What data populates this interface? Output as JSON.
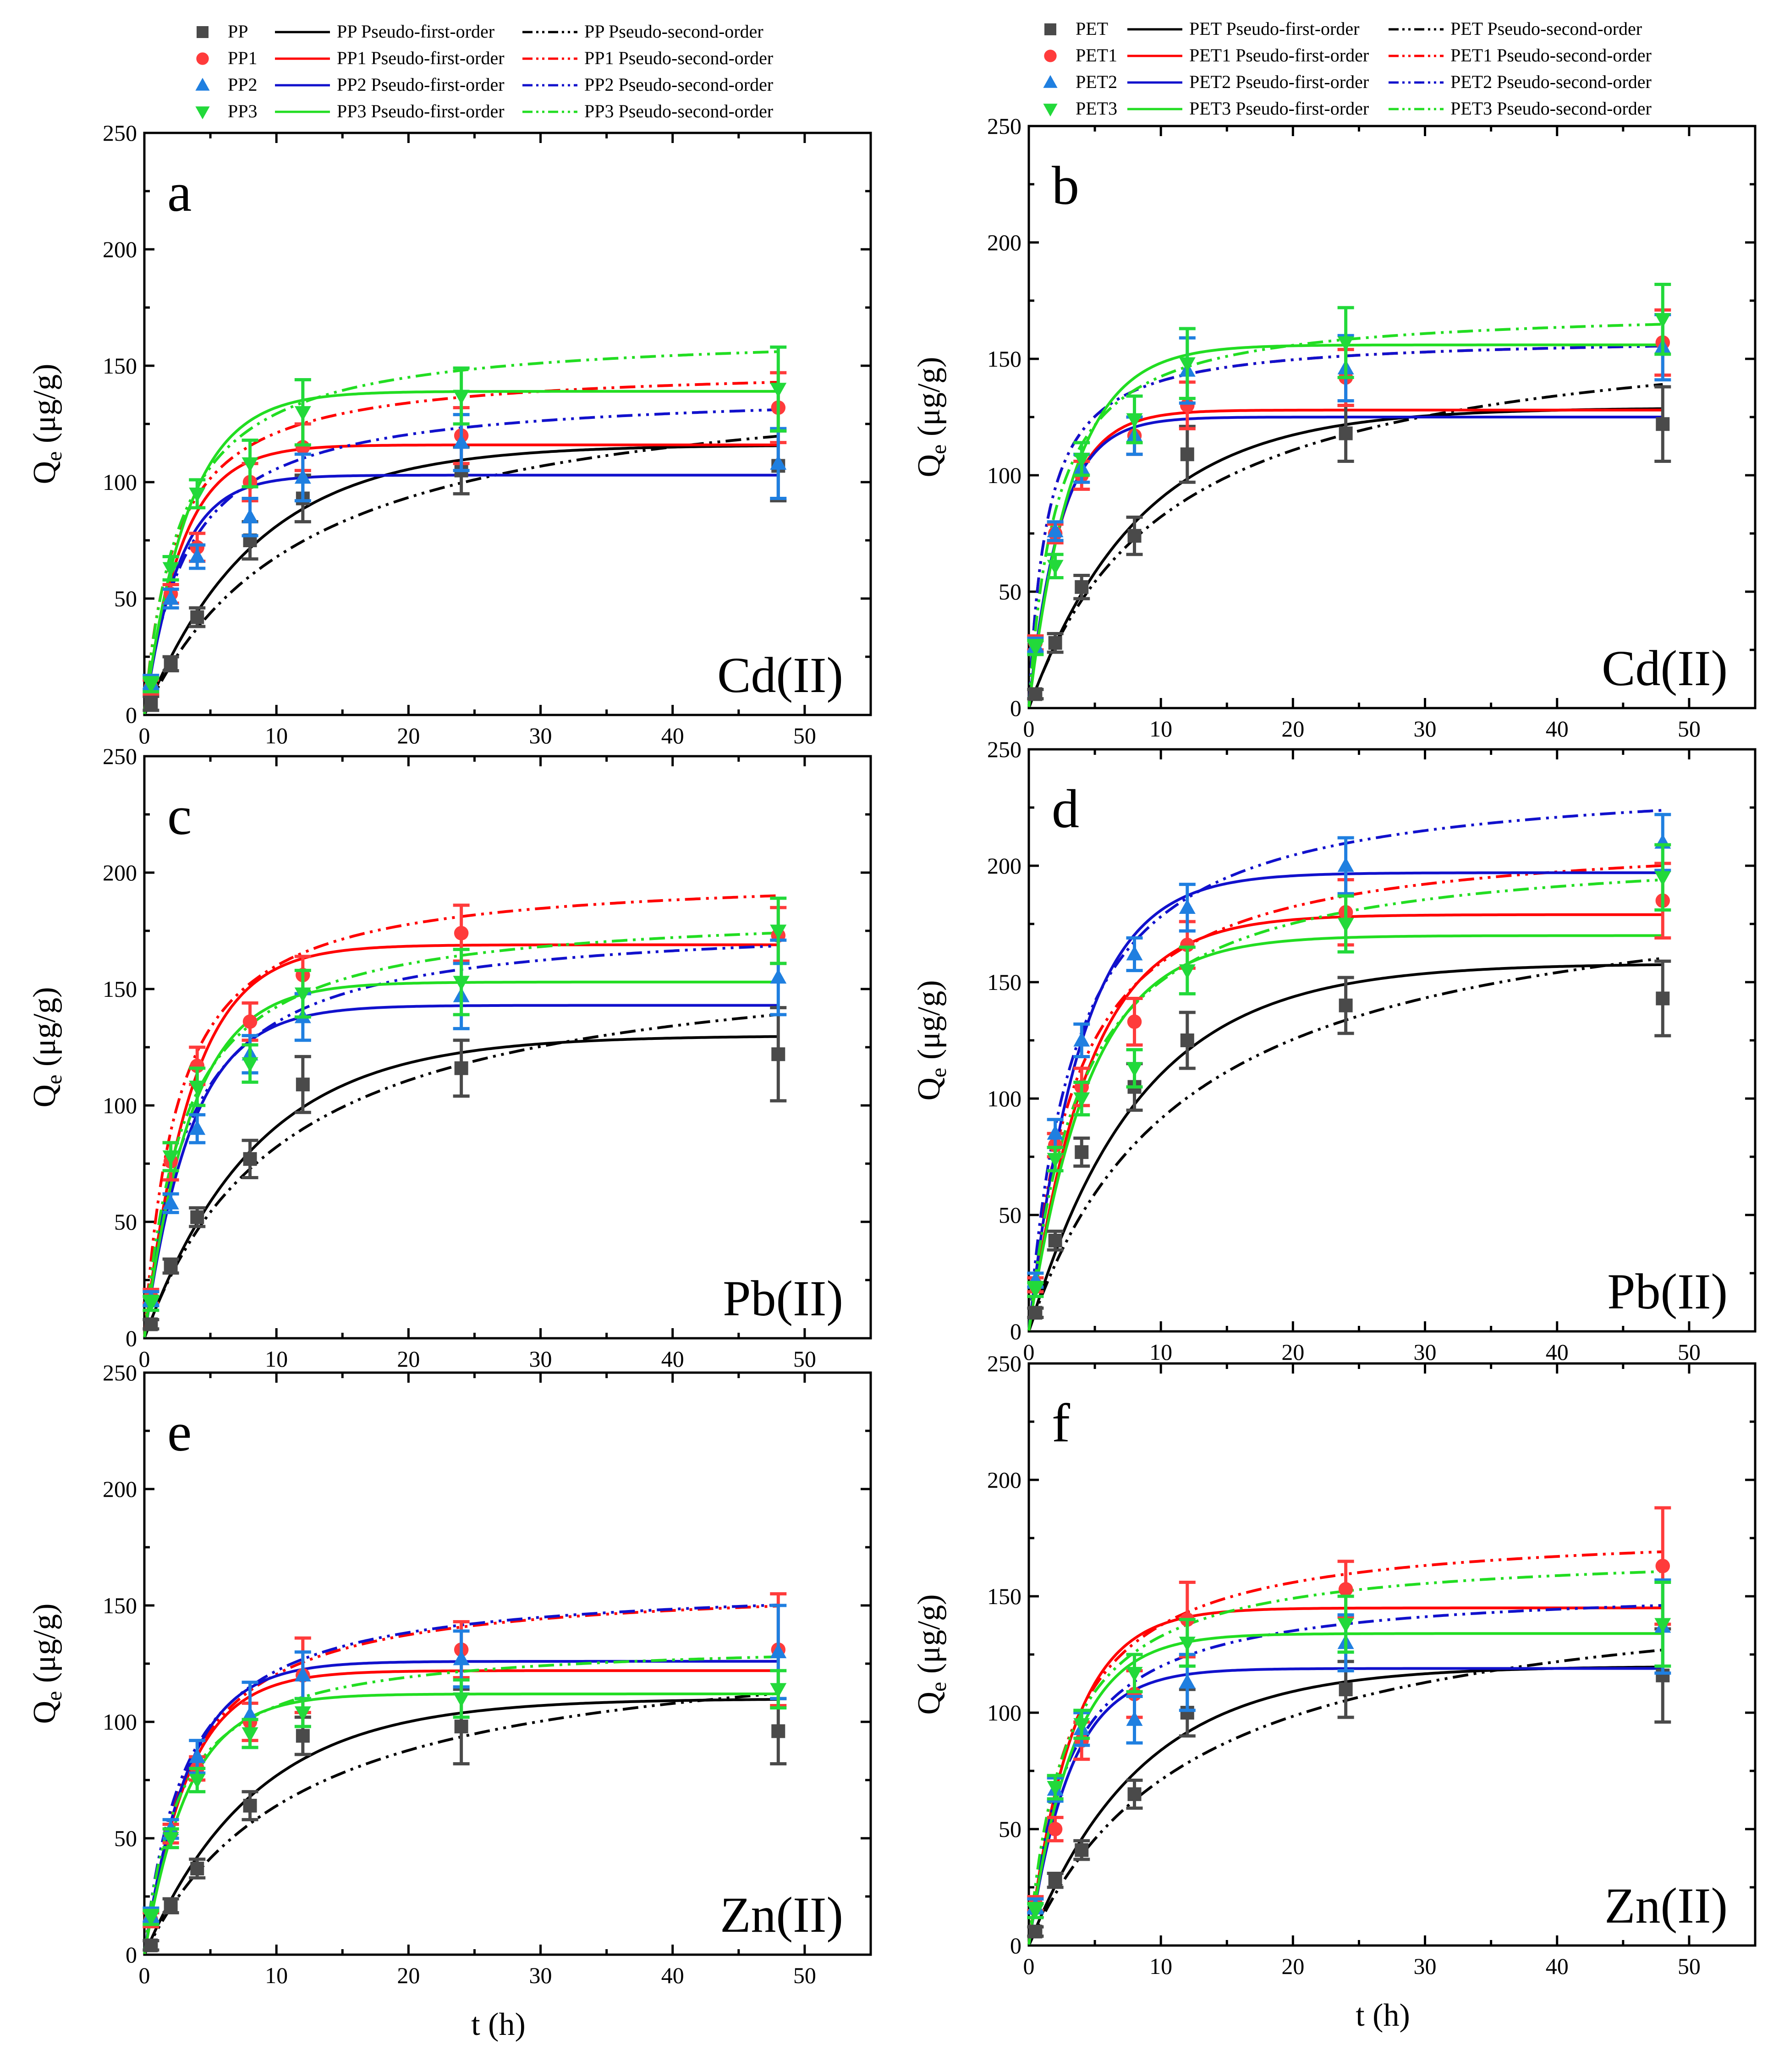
{
  "legend_left": {
    "rows": [
      {
        "marker_label": "PP",
        "first_label": "PP   Pseudo-first-order",
        "second_label": "PP   Pseudo-second-order"
      },
      {
        "marker_label": "PP1",
        "first_label": "PP1 Pseudo-first-order",
        "second_label": "PP1 Pseudo-second-order"
      },
      {
        "marker_label": "PP2",
        "first_label": "PP2 Pseudo-first-order",
        "second_label": "PP2 Pseudo-second-order"
      },
      {
        "marker_label": "PP3",
        "first_label": "PP3 Pseudo-first-order",
        "second_label": "PP3 Pseudo-second-order"
      }
    ]
  },
  "legend_right": {
    "rows": [
      {
        "marker_label": "PET",
        "first_label": "PET   Pseudo-first-order",
        "second_label": "PET   Pseudo-second-order"
      },
      {
        "marker_label": "PET1",
        "first_label": "PET1 Pseudo-first-order",
        "second_label": "PET1 Pseudo-second-order"
      },
      {
        "marker_label": "PET2",
        "first_label": "PET2 Pseudo-first-order",
        "second_label": "PET2 Pseudo-second-order"
      },
      {
        "marker_label": "PET3",
        "first_label": "PET3 Pseudo-first-order",
        "second_label": "PET3 Pseudo-second-order"
      }
    ]
  },
  "series_style": {
    "colors": [
      "#4a4a4a",
      "#ff3b3b",
      "#1f7fe0",
      "#22d93a"
    ],
    "fit_colors": [
      "#000000",
      "#ff0000",
      "#1111cc",
      "#22dd22"
    ],
    "markers": [
      "square",
      "circle",
      "triangle-up",
      "triangle-down"
    ]
  },
  "chart_data": [
    {
      "id": "a",
      "type": "scatter",
      "letter": "a",
      "metal": "Cd(II)",
      "xlabel": "t (h)",
      "ylabel": "Q_e (μg/g)",
      "xlim": [
        0,
        55
      ],
      "ylim": [
        0,
        250
      ],
      "xticks": [
        "0",
        "10",
        "20",
        "30",
        "40",
        "50"
      ],
      "yticks": [
        "0",
        "50",
        "100",
        "150",
        "200",
        "250"
      ],
      "x": [
        0.5,
        2,
        4,
        8,
        12,
        24,
        48
      ],
      "series": [
        {
          "name": "PP",
          "values": [
            5,
            22,
            42,
            75,
            93,
            105,
            107
          ],
          "errors": [
            3,
            3,
            4,
            8,
            10,
            10,
            15
          ],
          "qe1": 116,
          "k1": 0.12,
          "qe2": 150,
          "k2": 0.00055
        },
        {
          "name": "PP1",
          "values": [
            12,
            52,
            72,
            100,
            115,
            120,
            132
          ],
          "errors": [
            3,
            4,
            6,
            8,
            10,
            12,
            15
          ],
          "qe1": 116,
          "k1": 0.35,
          "qe2": 150,
          "k2": 0.0028
        },
        {
          "name": "PP2",
          "values": [
            14,
            50,
            68,
            85,
            102,
            117,
            108
          ],
          "errors": [
            3,
            4,
            5,
            8,
            10,
            12,
            15
          ],
          "qe1": 103,
          "k1": 0.38,
          "qe2": 140,
          "k2": 0.0022
        },
        {
          "name": "PP3",
          "values": [
            13,
            63,
            95,
            108,
            130,
            137,
            140
          ],
          "errors": [
            3,
            5,
            6,
            10,
            14,
            12,
            18
          ],
          "qe1": 139,
          "k1": 0.3,
          "qe2": 165,
          "k2": 0.0022
        }
      ]
    },
    {
      "id": "b",
      "type": "scatter",
      "letter": "b",
      "metal": "Cd(II)",
      "xlabel": "t (h)",
      "ylabel": "Q_e (μg/g)",
      "xlim": [
        0,
        55
      ],
      "ylim": [
        0,
        250
      ],
      "xticks": [
        "0",
        "10",
        "20",
        "30",
        "40",
        "50"
      ],
      "yticks": [
        "0",
        "50",
        "100",
        "150",
        "200",
        "250"
      ],
      "x": [
        0.5,
        2,
        4,
        8,
        12,
        24,
        48
      ],
      "series": [
        {
          "name": "PET",
          "values": [
            6,
            28,
            52,
            74,
            109,
            118,
            122
          ],
          "errors": [
            2,
            4,
            5,
            8,
            12,
            12,
            16
          ],
          "qe1": 129,
          "k1": 0.12,
          "qe2": 170,
          "k2": 0.00055
        },
        {
          "name": "PET1",
          "values": [
            28,
            75,
            100,
            117,
            130,
            142,
            157
          ],
          "errors": [
            3,
            4,
            6,
            8,
            10,
            12,
            14
          ],
          "qe1": 128,
          "k1": 0.4,
          "qe2": 160,
          "k2": 0.0045
        },
        {
          "name": "PET2",
          "values": [
            27,
            76,
            103,
            117,
            145,
            146,
            155
          ],
          "errors": [
            3,
            4,
            6,
            8,
            14,
            14,
            14
          ],
          "qe1": 125,
          "k1": 0.42,
          "qe2": 160,
          "k2": 0.0045
        },
        {
          "name": "PET3",
          "values": [
            26,
            61,
            107,
            124,
            148,
            157,
            167
          ],
          "errors": [
            3,
            5,
            7,
            10,
            15,
            15,
            15
          ],
          "qe1": 156,
          "k1": 0.3,
          "qe2": 172,
          "k2": 0.0028
        }
      ]
    },
    {
      "id": "c",
      "type": "scatter",
      "letter": "c",
      "metal": "Pb(II)",
      "xlabel": "t (h)",
      "ylabel": "Q_e (μg/g)",
      "xlim": [
        0,
        55
      ],
      "ylim": [
        0,
        250
      ],
      "xticks": [
        "0",
        "10",
        "20",
        "30",
        "40",
        "50"
      ],
      "yticks": [
        "0",
        "50",
        "100",
        "150",
        "200",
        "250"
      ],
      "x": [
        0.5,
        2,
        4,
        8,
        12,
        24,
        48
      ],
      "series": [
        {
          "name": "PP",
          "values": [
            6,
            31,
            52,
            77,
            109,
            116,
            122
          ],
          "errors": [
            2,
            3,
            4,
            8,
            12,
            12,
            20
          ],
          "qe1": 130,
          "k1": 0.12,
          "qe2": 170,
          "k2": 0.00055
        },
        {
          "name": "PP1",
          "values": [
            18,
            76,
            117,
            136,
            156,
            174,
            173
          ],
          "errors": [
            3,
            8,
            8,
            8,
            8,
            12,
            12
          ],
          "qe1": 169,
          "k1": 0.28,
          "qe2": 200,
          "k2": 0.002
        },
        {
          "name": "PP2",
          "values": [
            17,
            58,
            90,
            122,
            138,
            147,
            155
          ],
          "errors": [
            3,
            4,
            6,
            8,
            10,
            14,
            16
          ],
          "qe1": 143,
          "k1": 0.28,
          "qe2": 180,
          "k2": 0.0017
        },
        {
          "name": "PP3",
          "values": [
            15,
            78,
            108,
            118,
            148,
            153,
            175
          ],
          "errors": [
            3,
            6,
            8,
            8,
            10,
            14,
            14
          ],
          "qe1": 153,
          "k1": 0.28,
          "qe2": 185,
          "k2": 0.0018
        }
      ]
    },
    {
      "id": "d",
      "type": "scatter",
      "letter": "d",
      "metal": "Pb(II)",
      "xlabel": "t (h)",
      "ylabel": "Q_e (μg/g)",
      "xlim": [
        0,
        55
      ],
      "ylim": [
        0,
        250
      ],
      "xticks": [
        "0",
        "10",
        "20",
        "30",
        "40",
        "50"
      ],
      "yticks": [
        "0",
        "50",
        "100",
        "150",
        "200",
        "250"
      ],
      "x": [
        0.5,
        2,
        4,
        8,
        12,
        24,
        48
      ],
      "series": [
        {
          "name": "PET",
          "values": [
            8,
            39,
            77,
            105,
            125,
            140,
            143
          ],
          "errors": [
            2,
            4,
            6,
            10,
            12,
            12,
            16
          ],
          "qe1": 158,
          "k1": 0.12,
          "qe2": 200,
          "k2": 0.00042
        },
        {
          "name": "PET1",
          "values": [
            20,
            80,
            105,
            133,
            166,
            180,
            185
          ],
          "errors": [
            3,
            5,
            8,
            10,
            10,
            14,
            16
          ],
          "qe1": 179,
          "k1": 0.22,
          "qe2": 215,
          "k2": 0.0013
        },
        {
          "name": "PET2",
          "values": [
            22,
            85,
            125,
            162,
            182,
            200,
            210
          ],
          "errors": [
            3,
            6,
            7,
            7,
            10,
            12,
            12
          ],
          "qe1": 197,
          "k1": 0.25,
          "qe2": 240,
          "k2": 0.0012
        },
        {
          "name": "PET3",
          "values": [
            18,
            74,
            100,
            113,
            155,
            175,
            195
          ],
          "errors": [
            3,
            5,
            7,
            8,
            10,
            12,
            14
          ],
          "qe1": 170,
          "k1": 0.22,
          "qe2": 210,
          "k2": 0.0012
        }
      ]
    },
    {
      "id": "e",
      "type": "scatter",
      "letter": "e",
      "metal": "Zn(II)",
      "xlabel": "t (h)",
      "ylabel": "Q_e (μg/g)",
      "xlim": [
        0,
        55
      ],
      "ylim": [
        0,
        250
      ],
      "xticks": [
        "0",
        "10",
        "20",
        "30",
        "40",
        "50"
      ],
      "yticks": [
        "0",
        "50",
        "100",
        "150",
        "200",
        "250"
      ],
      "x": [
        0.5,
        2,
        4,
        8,
        12,
        24,
        48
      ],
      "series": [
        {
          "name": "PP",
          "values": [
            4,
            21,
            37,
            64,
            94,
            98,
            96
          ],
          "errors": [
            2,
            3,
            4,
            6,
            8,
            16,
            14
          ],
          "qe1": 110,
          "k1": 0.12,
          "qe2": 140,
          "k2": 0.0006
        },
        {
          "name": "PP1",
          "values": [
            15,
            52,
            80,
            100,
            120,
            131,
            131
          ],
          "errors": [
            3,
            4,
            5,
            8,
            16,
            12,
            24
          ],
          "qe1": 122,
          "k1": 0.3,
          "qe2": 160,
          "k2": 0.0019
        },
        {
          "name": "PP2",
          "values": [
            17,
            54,
            85,
            103,
            120,
            127,
            130
          ],
          "errors": [
            3,
            4,
            7,
            14,
            10,
            12,
            20
          ],
          "qe1": 126,
          "k1": 0.3,
          "qe2": 160,
          "k2": 0.002
        },
        {
          "name": "PP3",
          "values": [
            16,
            50,
            75,
            95,
            104,
            110,
            114
          ],
          "errors": [
            3,
            4,
            5,
            6,
            6,
            8,
            8
          ],
          "qe1": 112,
          "k1": 0.3,
          "qe2": 135,
          "k2": 0.0028
        }
      ]
    },
    {
      "id": "f",
      "type": "scatter",
      "letter": "f",
      "metal": "Zn(II)",
      "xlabel": "t (h)",
      "ylabel": "Q_e (μg/g)",
      "xlim": [
        0,
        55
      ],
      "ylim": [
        0,
        250
      ],
      "xticks": [
        "0",
        "10",
        "20",
        "30",
        "40",
        "50"
      ],
      "yticks": [
        "0",
        "50",
        "100",
        "150",
        "200",
        "250"
      ],
      "x": [
        0.5,
        2,
        4,
        8,
        12,
        24,
        48
      ],
      "series": [
        {
          "name": "PET",
          "values": [
            6,
            28,
            41,
            65,
            100,
            110,
            116
          ],
          "errors": [
            2,
            3,
            4,
            6,
            10,
            12,
            20
          ],
          "qe1": 120,
          "k1": 0.12,
          "qe2": 160,
          "k2": 0.0005
        },
        {
          "name": "PET1",
          "values": [
            18,
            50,
            88,
            108,
            140,
            153,
            163
          ],
          "errors": [
            3,
            5,
            8,
            10,
            16,
            12,
            25
          ],
          "qe1": 145,
          "k1": 0.3,
          "qe2": 180,
          "k2": 0.0018
        },
        {
          "name": "PET2",
          "values": [
            17,
            67,
            93,
            97,
            113,
            130,
            137
          ],
          "errors": [
            3,
            5,
            7,
            10,
            12,
            12,
            20
          ],
          "qe1": 119,
          "k1": 0.32,
          "qe2": 155,
          "k2": 0.0022
        },
        {
          "name": "PET3",
          "values": [
            15,
            68,
            95,
            117,
            130,
            138,
            138
          ],
          "errors": [
            3,
            5,
            6,
            8,
            10,
            12,
            18
          ],
          "qe1": 134,
          "k1": 0.3,
          "qe2": 170,
          "k2": 0.0021
        }
      ]
    }
  ]
}
